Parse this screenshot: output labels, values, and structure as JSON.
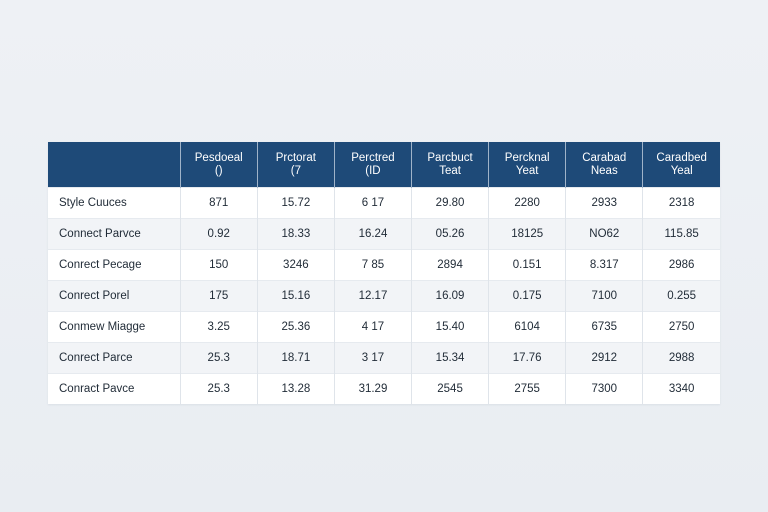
{
  "table": {
    "columns": [
      {
        "line1": "",
        "line2": ""
      },
      {
        "line1": "Pesdoeal",
        "line2": "()"
      },
      {
        "line1": "Prctorat",
        "line2": "(7"
      },
      {
        "line1": "Perctred",
        "line2": "(ID"
      },
      {
        "line1": "Parcbuct",
        "line2": "Teat"
      },
      {
        "line1": "Percknal",
        "line2": "Yeat"
      },
      {
        "line1": "Carabad",
        "line2": "Neas"
      },
      {
        "line1": "Caradbed",
        "line2": "Yeal"
      }
    ],
    "rows": [
      [
        "Style Cuuces",
        "871",
        "15.72",
        "6 17",
        "29.80",
        "2280",
        "2933",
        "2318"
      ],
      [
        "Connect Parvce",
        "0.92",
        "18.33",
        "16.24",
        "05.26",
        "18125",
        "NO62",
        "115.85"
      ],
      [
        "Conrect Pecage",
        "150",
        "3246",
        "7 85",
        "2894",
        "0.151",
        "8.317",
        "2986"
      ],
      [
        "Conrect Porel",
        "175",
        "15.16",
        "12.17",
        "16.09",
        "0.175",
        "7100",
        "0.255"
      ],
      [
        "Conmew Miagge",
        "3.25",
        "25.36",
        "4 17",
        "15.40",
        "6104",
        "6735",
        "2750"
      ],
      [
        "Conrect Parce",
        "25.3",
        "18.71",
        "3 17",
        "15.34",
        "17.76",
        "2912",
        "2988"
      ],
      [
        "Conract Pavce",
        "25.3",
        "13.28",
        "31.29",
        "2545",
        "2755",
        "7300",
        "3340"
      ]
    ]
  },
  "colors": {
    "header_bg": "#1e4a78",
    "header_text": "#ffffff",
    "row_alt_bg": "#f2f4f7",
    "page_bg": "#edf0f4"
  }
}
